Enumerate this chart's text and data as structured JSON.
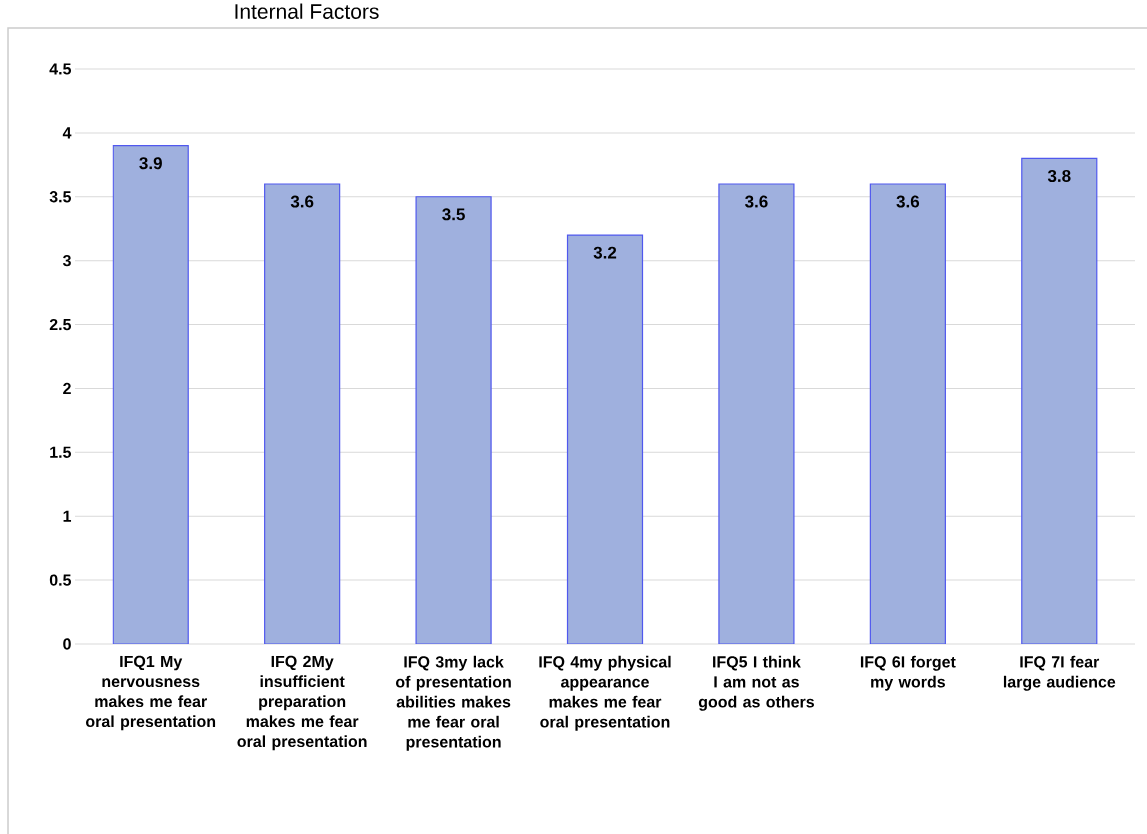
{
  "chart_data": {
    "type": "bar",
    "title": "Internal Factors",
    "categories": [
      "IFQ1 My nervousness makes me fear oral presentation",
      "IFQ 2My insufficient preparation makes me fear oral presentation",
      "IFQ 3my lack of presentation abilities makes me fear oral presentation",
      "IFQ 4my physical appearance makes me fear oral presentation",
      "IFQ5 I think I am not as good as others",
      "IFQ 6I forget my words",
      "IFQ 7I fear large audience"
    ],
    "values": [
      3.9,
      3.6,
      3.5,
      3.2,
      3.6,
      3.6,
      3.8
    ],
    "color": "#9fb0de",
    "ylim": [
      0,
      4.5
    ],
    "yticks": [
      0,
      0.5,
      1,
      1.5,
      2,
      2.5,
      3,
      3.5,
      4,
      4.5
    ],
    "grid": "y",
    "data_labels": true
  }
}
